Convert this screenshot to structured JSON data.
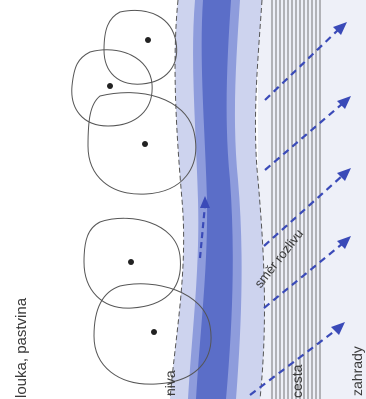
{
  "labels": {
    "louka": "louka, pastvina",
    "niva": "niva",
    "smer": "směr rozlivu",
    "cesta": "cesta",
    "zahrady": "zahrady"
  },
  "colors": {
    "river_core": "#5b6fc9",
    "river_mid": "#8f9edd",
    "floodplain": "#cfd5ef",
    "garden_tint": "#e6e9f6",
    "arrow": "#3a4ab8",
    "outline": "#555555",
    "tree_point": "#222222"
  },
  "legend_items": [
    {
      "key": "louka"
    },
    {
      "key": "niva"
    },
    {
      "key": "smer"
    },
    {
      "key": "cesta"
    },
    {
      "key": "zahrady"
    }
  ]
}
